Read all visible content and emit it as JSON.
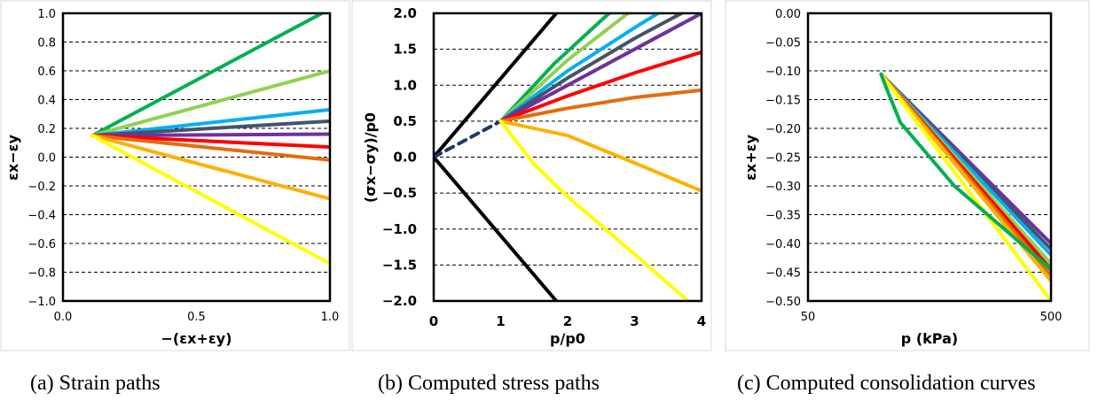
{
  "chart_data": [
    {
      "id": "a",
      "type": "line",
      "caption": "(a) Strain paths",
      "xlabel": "−(εx+εy)",
      "ylabel": "εx−εy",
      "xlim": [
        0,
        1
      ],
      "ylim": [
        -1,
        1
      ],
      "x_ticks": [
        "0.0",
        "0.5",
        "1.0"
      ],
      "y_ticks": [
        "−1.0",
        "−0.8",
        "−0.6",
        "−0.4",
        "−0.2",
        "0.0",
        "0.2",
        "0.4",
        "0.6",
        "0.8",
        "1.0"
      ],
      "grid": "horizontal-dashed",
      "series": [
        {
          "color": "#00b050",
          "points": [
            [
              0.11,
              0.15
            ],
            [
              0.97,
              1.0
            ]
          ]
        },
        {
          "color": "#92d050",
          "points": [
            [
              0.11,
              0.15
            ],
            [
              1.0,
              0.6
            ]
          ]
        },
        {
          "color": "#00b0f0",
          "points": [
            [
              0.11,
              0.15
            ],
            [
              1.0,
              0.33
            ]
          ]
        },
        {
          "color": "#44546a",
          "points": [
            [
              0.11,
              0.15
            ],
            [
              1.0,
              0.25
            ]
          ]
        },
        {
          "color": "#7030a0",
          "points": [
            [
              0.11,
              0.15
            ],
            [
              1.0,
              0.16
            ]
          ]
        },
        {
          "color": "#ff0000",
          "points": [
            [
              0.11,
              0.15
            ],
            [
              1.0,
              0.07
            ]
          ]
        },
        {
          "color": "#e46c0a",
          "points": [
            [
              0.11,
              0.15
            ],
            [
              1.0,
              -0.02
            ]
          ]
        },
        {
          "color": "#ffb000",
          "points": [
            [
              0.11,
              0.15
            ],
            [
              1.0,
              -0.29
            ]
          ]
        },
        {
          "color": "#ffff00",
          "points": [
            [
              0.11,
              0.15
            ],
            [
              1.0,
              -0.74
            ]
          ]
        }
      ]
    },
    {
      "id": "b",
      "type": "line",
      "caption": "(b) Computed stress paths",
      "xlabel": "p/p0",
      "ylabel": "(σx−σy)/p0",
      "xlim": [
        0,
        4
      ],
      "ylim": [
        -2,
        2
      ],
      "x_ticks": [
        "0",
        "1",
        "2",
        "3",
        "4"
      ],
      "y_ticks": [
        "−2.0",
        "−1.5",
        "−1.0",
        "−0.5",
        "0.0",
        "0.5",
        "1.0",
        "1.5",
        "2.0"
      ],
      "grid": "horizontal-dashed",
      "series": [
        {
          "color": "#000000",
          "points": [
            [
              0,
              0
            ],
            [
              1.83,
              2.0
            ]
          ]
        },
        {
          "color": "#000000",
          "points": [
            [
              0,
              0
            ],
            [
              1.83,
              -2.0
            ]
          ]
        },
        {
          "color": "#1f3864",
          "dashed": true,
          "points": [
            [
              0,
              0
            ],
            [
              1,
              0.5
            ]
          ]
        },
        {
          "color": "#1f3864",
          "dashed": true,
          "points": [
            [
              1,
              0.5
            ],
            [
              2,
              1.0
            ],
            [
              3,
              1.5
            ],
            [
              3.9,
              1.95
            ]
          ]
        },
        {
          "color": "#00b050",
          "points": [
            [
              1,
              0.5
            ],
            [
              1.8,
              1.3
            ],
            [
              2.5,
              1.9
            ],
            [
              2.62,
              2.0
            ]
          ]
        },
        {
          "color": "#92d050",
          "points": [
            [
              1,
              0.5
            ],
            [
              2,
              1.35
            ],
            [
              2.9,
              2.0
            ]
          ]
        },
        {
          "color": "#00b0f0",
          "points": [
            [
              1,
              0.5
            ],
            [
              2,
              1.2
            ],
            [
              3,
              1.8
            ],
            [
              3.35,
              2.0
            ]
          ]
        },
        {
          "color": "#44546a",
          "points": [
            [
              1,
              0.5
            ],
            [
              2,
              1.1
            ],
            [
              3,
              1.65
            ],
            [
              3.7,
              2.0
            ]
          ]
        },
        {
          "color": "#7030a0",
          "points": [
            [
              1,
              0.5
            ],
            [
              2,
              1.0
            ],
            [
              3,
              1.5
            ],
            [
              4.0,
              2.0
            ]
          ]
        },
        {
          "color": "#ff0000",
          "points": [
            [
              1,
              0.5
            ],
            [
              2,
              0.85
            ],
            [
              3,
              1.17
            ],
            [
              4.0,
              1.46
            ]
          ]
        },
        {
          "color": "#e46c0a",
          "points": [
            [
              1,
              0.5
            ],
            [
              2,
              0.68
            ],
            [
              3,
              0.83
            ],
            [
              4.0,
              0.93
            ]
          ]
        },
        {
          "color": "#ffb000",
          "points": [
            [
              1,
              0.5
            ],
            [
              2,
              0.3
            ],
            [
              3,
              -0.08
            ],
            [
              4.0,
              -0.47
            ]
          ]
        },
        {
          "color": "#ffff00",
          "points": [
            [
              1,
              0.5
            ],
            [
              1.5,
              -0.1
            ],
            [
              2,
              -0.55
            ],
            [
              3,
              -1.35
            ],
            [
              3.8,
              -2.0
            ]
          ]
        }
      ]
    },
    {
      "id": "c",
      "type": "line",
      "caption": "(c) Computed consolidation curves",
      "xlabel": "p (kPa)",
      "ylabel": "εx+εy",
      "xscale": "log",
      "xlim": [
        50,
        500
      ],
      "ylim": [
        -0.5,
        0
      ],
      "x_ticks": [
        "50",
        "500"
      ],
      "y_ticks": [
        "−0.50",
        "−0.45",
        "−0.40",
        "−0.35",
        "−0.30",
        "−0.25",
        "−0.20",
        "−0.15",
        "−0.10",
        "−0.05",
        "0.00"
      ],
      "grid": "horizontal-dashed",
      "series": [
        {
          "color": "#7030a0",
          "points": [
            [
              100,
              -0.106
            ],
            [
              500,
              -0.4
            ]
          ]
        },
        {
          "color": "#44546a",
          "points": [
            [
              100,
              -0.106
            ],
            [
              500,
              -0.41
            ]
          ]
        },
        {
          "color": "#00b0f0",
          "points": [
            [
              100,
              -0.106
            ],
            [
              500,
              -0.42
            ]
          ]
        },
        {
          "color": "#92d050",
          "points": [
            [
              100,
              -0.106
            ],
            [
              500,
              -0.435
            ]
          ]
        },
        {
          "color": "#ff0000",
          "points": [
            [
              100,
              -0.106
            ],
            [
              500,
              -0.445
            ]
          ]
        },
        {
          "color": "#e46c0a",
          "points": [
            [
              100,
              -0.106
            ],
            [
              500,
              -0.455
            ]
          ]
        },
        {
          "color": "#ffb000",
          "points": [
            [
              100,
              -0.106
            ],
            [
              500,
              -0.465
            ]
          ]
        },
        {
          "color": "#ffff00",
          "points": [
            [
              100,
              -0.106
            ],
            [
              500,
              -0.5
            ]
          ]
        },
        {
          "color": "#00b050",
          "points": [
            [
              100,
              -0.106
            ],
            [
              104,
              -0.125
            ],
            [
              120,
              -0.19
            ],
            [
              200,
              -0.3
            ],
            [
              500,
              -0.445
            ]
          ]
        }
      ]
    }
  ]
}
